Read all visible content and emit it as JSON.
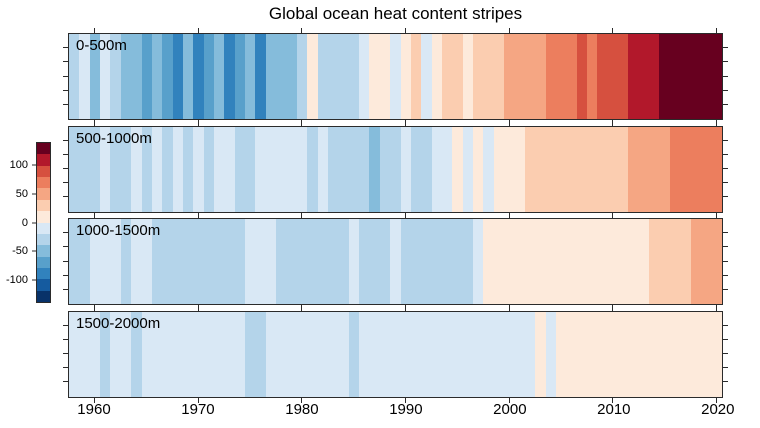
{
  "figure": {
    "title": "Global ocean heat content stripes",
    "background_color": "#ffffff",
    "axis_color": "#2b2b2b",
    "text_color": "#000000"
  },
  "chart_data": {
    "type": "heatmap",
    "title": "Global ocean heat content stripes",
    "layout": "4 stacked stripe panels by ocean depth, shared year axis, diverging red-blue colorbar at left",
    "x_axis": {
      "min": 1957.5,
      "max": 2020.5,
      "tick_years": [
        1960,
        1970,
        1980,
        1990,
        2000,
        2010,
        2020
      ],
      "tick_labels": [
        "1960",
        "1970",
        "1980",
        "1990",
        "2000",
        "2010",
        "2020"
      ]
    },
    "years": [
      1958,
      1959,
      1960,
      1961,
      1962,
      1963,
      1964,
      1965,
      1966,
      1967,
      1968,
      1969,
      1970,
      1971,
      1972,
      1973,
      1974,
      1975,
      1976,
      1977,
      1978,
      1979,
      1980,
      1981,
      1982,
      1983,
      1984,
      1985,
      1986,
      1987,
      1988,
      1989,
      1990,
      1991,
      1992,
      1993,
      1994,
      1995,
      1996,
      1997,
      1998,
      1999,
      2000,
      2001,
      2002,
      2003,
      2004,
      2005,
      2006,
      2007,
      2008,
      2009,
      2010,
      2011,
      2012,
      2013,
      2014,
      2015,
      2016,
      2017,
      2018,
      2019,
      2020
    ],
    "colorbar": {
      "orientation": "vertical",
      "min": -140,
      "max": 140,
      "step": 20,
      "tick_values": [
        100,
        50,
        0,
        -50,
        -100
      ],
      "tick_labels": [
        "100",
        "50",
        "0",
        "-50",
        "-100"
      ],
      "colors_low_to_high": [
        "#083269",
        "#155b9f",
        "#3182bd",
        "#58a0cb",
        "#85bcdb",
        "#b4d4ea",
        "#d9e8f5",
        "#fdeadb",
        "#fbcdb0",
        "#f5a683",
        "#ec7e5e",
        "#d6503f",
        "#b2182b",
        "#67001f"
      ]
    },
    "panels": [
      {
        "label": "0-500m",
        "values": [
          -25,
          -15,
          -45,
          -8,
          -35,
          -55,
          -45,
          -70,
          -50,
          -65,
          -90,
          -60,
          -95,
          -70,
          -55,
          -85,
          -75,
          -60,
          -90,
          -50,
          -60,
          -45,
          -30,
          12,
          -25,
          -35,
          -25,
          -30,
          -12,
          15,
          10,
          -18,
          18,
          22,
          -20,
          12,
          25,
          32,
          8,
          28,
          38,
          30,
          42,
          48,
          52,
          58,
          65,
          72,
          68,
          85,
          78,
          88,
          95,
          92,
          105,
          102,
          112,
          122,
          128,
          132,
          130,
          138,
          138
        ]
      },
      {
        "label": "500-1000m",
        "values": [
          -35,
          -25,
          -28,
          -18,
          -30,
          -22,
          -18,
          -25,
          -18,
          -22,
          -16,
          -24,
          -18,
          -32,
          -20,
          -15,
          -22,
          -26,
          -16,
          -20,
          -14,
          -20,
          -15,
          -22,
          -16,
          -26,
          -32,
          -36,
          -28,
          -45,
          -38,
          -28,
          -20,
          -26,
          -32,
          -18,
          -12,
          12,
          -16,
          10,
          -12,
          14,
          15,
          16,
          22,
          28,
          30,
          34,
          30,
          36,
          32,
          34,
          36,
          30,
          45,
          55,
          58,
          52,
          68,
          62,
          72,
          66,
          78
        ]
      },
      {
        "label": "1000-1500m",
        "values": [
          -22,
          -28,
          -18,
          -14,
          -16,
          -24,
          -14,
          -12,
          -26,
          -28,
          -24,
          -26,
          -28,
          -24,
          -26,
          -22,
          -26,
          -14,
          -12,
          -16,
          -24,
          -26,
          -22,
          -26,
          -24,
          -28,
          -22,
          -12,
          -24,
          -26,
          -22,
          -14,
          -24,
          -26,
          -28,
          -24,
          -26,
          -22,
          -24,
          -14,
          12,
          14,
          15,
          14,
          16,
          15,
          14,
          15,
          16,
          15,
          14,
          15,
          16,
          15,
          14,
          18,
          28,
          38,
          36,
          38,
          42,
          40,
          44
        ]
      },
      {
        "label": "1500-2000m",
        "values": [
          -10,
          -12,
          -18,
          -22,
          -14,
          -18,
          -22,
          -14,
          -12,
          -10,
          -12,
          -10,
          -12,
          -10,
          -12,
          -10,
          -12,
          -22,
          -22,
          -12,
          -10,
          -12,
          -10,
          -12,
          -10,
          -12,
          -16,
          -22,
          -12,
          -10,
          -12,
          -10,
          -12,
          -14,
          -12,
          -10,
          -12,
          -10,
          -12,
          -10,
          -12,
          -10,
          -12,
          -10,
          -12,
          8,
          -10,
          12,
          13,
          12,
          13,
          12,
          13,
          12,
          13,
          12,
          13,
          14,
          13,
          14,
          13,
          14,
          14
        ]
      }
    ]
  }
}
